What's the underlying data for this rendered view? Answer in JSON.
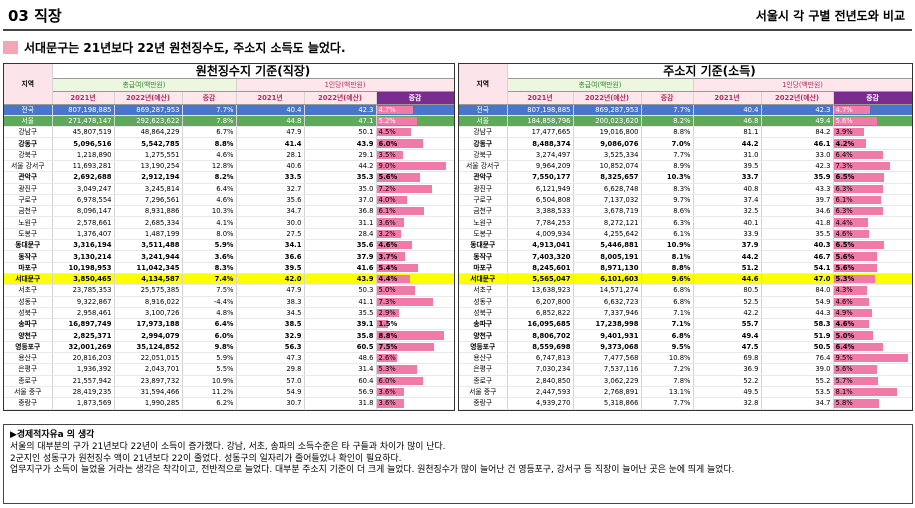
{
  "header": {
    "title": "03 직장",
    "subtitle": "서울시 각 구별 전년도와 비교"
  },
  "headline": "서대문구는 21년보다 22년 원천징수도, 주소지 소득도 늘었다.",
  "colors": {
    "accent": "#f3a7b4",
    "bar": "#f07aa8",
    "highlight": "#ffff00",
    "national_row": "#4a76c9",
    "seoul_row": "#5fa85c",
    "header_dark": "#7a2b8e"
  },
  "left_table": {
    "title": "원천징수지 기준(직장)",
    "region_header": "지역",
    "group1": "총급여(백만원)",
    "group2": "1인당(백만원)",
    "cols": [
      "2021년",
      "2022년(예산)",
      "증감",
      "2021년",
      "2022년(예산)",
      "증감"
    ],
    "rows": [
      [
        "전국",
        "807,198,885",
        "869,287,953",
        "7.7%",
        "40.4",
        "42.3",
        "4.7%"
      ],
      [
        "서울",
        "271,478,147",
        "292,623,622",
        "7.8%",
        "44.8",
        "47.1",
        "5.2%"
      ],
      [
        "강남구",
        "45,807,519",
        "48,864,229",
        "6.7%",
        "47.9",
        "50.1",
        "4.5%"
      ],
      [
        "강동구",
        "5,096,516",
        "5,542,785",
        "8.8%",
        "41.4",
        "43.9",
        "6.0%"
      ],
      [
        "강북구",
        "1,218,890",
        "1,275,551",
        "4.6%",
        "28.1",
        "29.1",
        "3.5%"
      ],
      [
        "서울 강서구",
        "11,693,281",
        "13,190,254",
        "12.8%",
        "40.6",
        "44.2",
        "9.0%"
      ],
      [
        "관악구",
        "2,692,688",
        "2,912,194",
        "8.2%",
        "33.5",
        "35.3",
        "5.6%"
      ],
      [
        "광진구",
        "3,049,247",
        "3,245,814",
        "6.4%",
        "32.7",
        "35.0",
        "7.2%"
      ],
      [
        "구로구",
        "6,978,554",
        "7,296,561",
        "4.6%",
        "35.6",
        "37.0",
        "4.0%"
      ],
      [
        "금천구",
        "8,096,147",
        "8,931,886",
        "10.3%",
        "34.7",
        "36.8",
        "6.1%"
      ],
      [
        "노원구",
        "2,578,661",
        "2,685,334",
        "4.1%",
        "30.0",
        "31.1",
        "3.6%"
      ],
      [
        "도봉구",
        "1,376,407",
        "1,487,199",
        "8.0%",
        "27.5",
        "28.4",
        "3.2%"
      ],
      [
        "동대문구",
        "3,316,194",
        "3,511,488",
        "5.9%",
        "34.1",
        "35.6",
        "4.6%"
      ],
      [
        "동작구",
        "3,130,214",
        "3,241,944",
        "3.6%",
        "36.6",
        "37.9",
        "3.7%"
      ],
      [
        "마포구",
        "10,198,953",
        "11,042,345",
        "8.3%",
        "39.5",
        "41.6",
        "5.4%"
      ],
      [
        "서대문구",
        "3,850,465",
        "4,134,587",
        "7.4%",
        "42.0",
        "43.9",
        "4.4%"
      ],
      [
        "서초구",
        "23,785,353",
        "25,575,385",
        "7.5%",
        "47.9",
        "50.3",
        "5.0%"
      ],
      [
        "성동구",
        "9,322,867",
        "8,916,022",
        "-4.4%",
        "38.3",
        "41.1",
        "7.3%"
      ],
      [
        "성북구",
        "2,958,461",
        "3,100,726",
        "4.8%",
        "34.5",
        "35.5",
        "2.9%"
      ],
      [
        "송파구",
        "16,897,749",
        "17,973,188",
        "6.4%",
        "38.5",
        "39.1",
        "1.5%"
      ],
      [
        "양천구",
        "2,825,371",
        "2,994,079",
        "6.0%",
        "32.9",
        "35.8",
        "8.8%"
      ],
      [
        "영등포구",
        "32,001,269",
        "35,124,852",
        "9.8%",
        "56.3",
        "60.5",
        "7.5%"
      ],
      [
        "용산구",
        "20,816,203",
        "22,051,015",
        "5.9%",
        "47.3",
        "48.6",
        "2.6%"
      ],
      [
        "은평구",
        "1,936,392",
        "2,043,701",
        "5.5%",
        "29.8",
        "31.4",
        "5.3%"
      ],
      [
        "종로구",
        "21,557,942",
        "23,897,732",
        "10.9%",
        "57.0",
        "60.4",
        "6.0%"
      ],
      [
        "서울 중구",
        "28,419,235",
        "31,594,466",
        "11.2%",
        "54.9",
        "56.9",
        "3.6%"
      ],
      [
        "중랑구",
        "1,873,569",
        "1,990,285",
        "6.2%",
        "30.7",
        "31.8",
        "3.6%"
      ]
    ]
  },
  "right_table": {
    "title": "주소지 기준(소득)",
    "region_header": "지역",
    "group1": "총급여(백만원)",
    "group2": "1인당(백만원)",
    "cols": [
      "2021년",
      "2022년(예산)",
      "증감",
      "2021년",
      "2022년(예산)",
      "증감"
    ],
    "rows": [
      [
        "전국",
        "807,198,885",
        "869,287,953",
        "7.7%",
        "40.4",
        "42.3",
        "4.7%"
      ],
      [
        "서울",
        "184,858,796",
        "200,023,620",
        "8.2%",
        "46.8",
        "49.4",
        "5.6%"
      ],
      [
        "강남구",
        "17,477,665",
        "19,016,800",
        "8.8%",
        "81.1",
        "84.2",
        "3.9%"
      ],
      [
        "강동구",
        "8,488,374",
        "9,086,076",
        "7.0%",
        "44.2",
        "46.1",
        "4.2%"
      ],
      [
        "강북구",
        "3,274,497",
        "3,525,334",
        "7.7%",
        "31.0",
        "33.0",
        "6.4%"
      ],
      [
        "서울 강서구",
        "9,964,209",
        "10,852,074",
        "8.9%",
        "39.5",
        "42.3",
        "7.3%"
      ],
      [
        "관악구",
        "7,550,177",
        "8,325,657",
        "10.3%",
        "33.7",
        "35.9",
        "6.5%"
      ],
      [
        "광진구",
        "6,121,949",
        "6,628,748",
        "8.3%",
        "40.8",
        "43.3",
        "6.3%"
      ],
      [
        "구로구",
        "6,504,808",
        "7,137,032",
        "9.7%",
        "37.4",
        "39.7",
        "6.1%"
      ],
      [
        "금천구",
        "3,388,533",
        "3,678,719",
        "8.6%",
        "32.5",
        "34.6",
        "6.3%"
      ],
      [
        "노원구",
        "7,784,253",
        "8,272,121",
        "6.3%",
        "40.1",
        "41.8",
        "4.4%"
      ],
      [
        "도봉구",
        "4,009,934",
        "4,255,642",
        "6.1%",
        "33.9",
        "35.5",
        "4.6%"
      ],
      [
        "동대문구",
        "4,913,041",
        "5,446,881",
        "10.9%",
        "37.9",
        "40.3",
        "6.5%"
      ],
      [
        "동작구",
        "7,403,320",
        "8,005,191",
        "8.1%",
        "44.2",
        "46.7",
        "5.6%"
      ],
      [
        "마포구",
        "8,245,601",
        "8,971,130",
        "8.8%",
        "51.2",
        "54.1",
        "5.6%"
      ],
      [
        "서대문구",
        "5,565,047",
        "6,101,603",
        "9.6%",
        "44.6",
        "47.0",
        "5.3%"
      ],
      [
        "서초구",
        "13,638,923",
        "14,571,274",
        "6.8%",
        "80.5",
        "84.0",
        "4.3%"
      ],
      [
        "성동구",
        "6,207,800",
        "6,632,723",
        "6.8%",
        "52.5",
        "54.9",
        "4.6%"
      ],
      [
        "성북구",
        "6,852,822",
        "7,337,946",
        "7.1%",
        "42.2",
        "44.3",
        "4.9%"
      ],
      [
        "송파구",
        "16,095,685",
        "17,238,998",
        "7.1%",
        "55.7",
        "58.3",
        "4.6%"
      ],
      [
        "양천구",
        "8,806,702",
        "9,401,931",
        "6.8%",
        "49.4",
        "51.9",
        "5.0%"
      ],
      [
        "영등포구",
        "8,559,698",
        "9,373,068",
        "9.5%",
        "47.5",
        "50.5",
        "6.4%"
      ],
      [
        "용산구",
        "6,747,813",
        "7,477,568",
        "10.8%",
        "69.8",
        "76.4",
        "9.5%"
      ],
      [
        "은평구",
        "7,030,234",
        "7,537,116",
        "7.2%",
        "36.9",
        "39.0",
        "5.6%"
      ],
      [
        "종로구",
        "2,840,850",
        "3,062,229",
        "7.8%",
        "52.2",
        "55.2",
        "5.7%"
      ],
      [
        "서울 중구",
        "2,447,593",
        "2,768,891",
        "13.1%",
        "49.5",
        "53.5",
        "8.1%"
      ],
      [
        "중랑구",
        "4,939,270",
        "5,318,866",
        "7.7%",
        "32.8",
        "34.7",
        "5.8%"
      ]
    ]
  },
  "notes": {
    "title": "▶경제적자유a 의 생각",
    "lines": [
      "서울의 대부분의 구가 21년보다 22년이 소득이 증가했다. 강남, 서초, 송파의 소득수준은 타 구들과 차이가 많이 난다.",
      "2군지인 성동구가 원천징수 액이 21년보다 22이 줄었다. 성동구의 일자리가 줄어들었나 확인이 필요하다.",
      "업무지구가 소득이 늘었을 거라는 생각은 착각이고, 전반적으로 늘었다. 대부분 주소지 기준이 더 크게 늘었다. 원천징수가 많이 늘어난 건 영등포구, 강서구 등 직장이 늘어난 곳은 눈에 띄게 늘었다."
    ]
  }
}
